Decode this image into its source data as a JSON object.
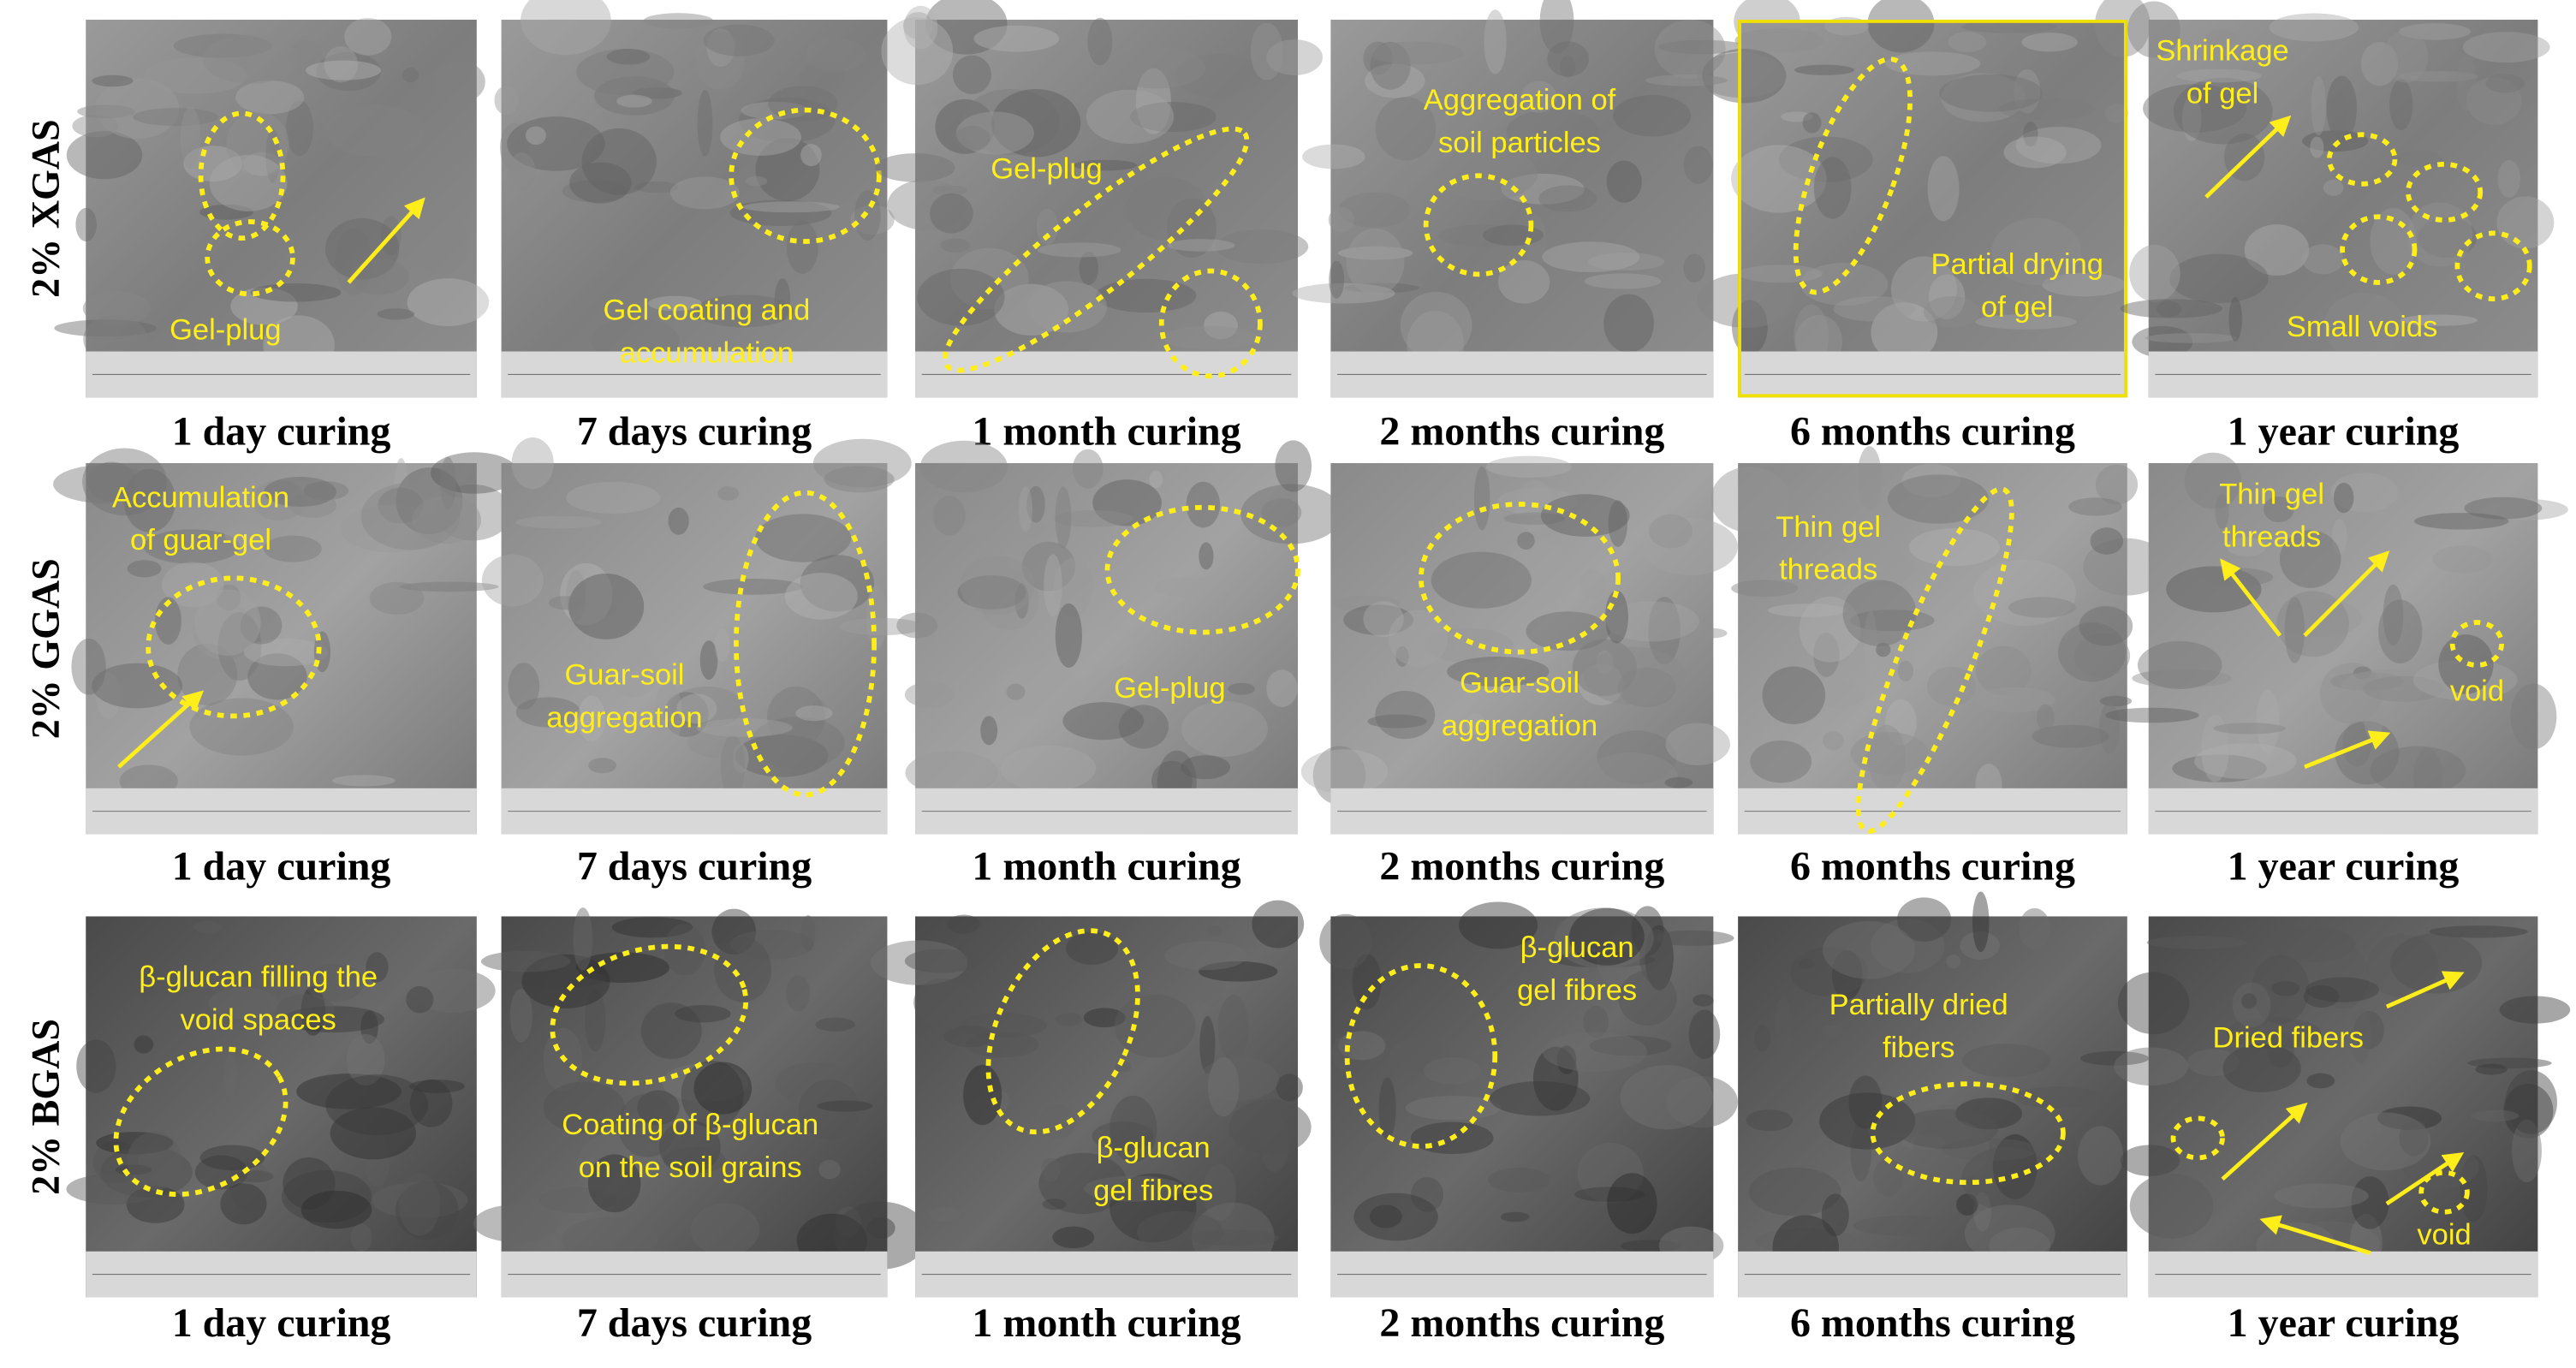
{
  "rows": [
    {
      "label": "2% XGAS",
      "panels": [
        {
          "caption": "1 day curing",
          "notes": [
            [
              "Gel-plug"
            ]
          ]
        },
        {
          "caption": "7 days curing",
          "notes": [
            [
              "Gel coating and",
              "accumulation"
            ]
          ]
        },
        {
          "caption": "1 month curing",
          "notes": [
            [
              "Gel-plug"
            ]
          ]
        },
        {
          "caption": "2 months curing",
          "notes": [
            [
              "Aggregation of",
              "soil particles"
            ]
          ]
        },
        {
          "caption": "6 months curing",
          "notes": [
            [
              "Partial drying",
              "of gel"
            ]
          ]
        },
        {
          "caption": "1 year curing",
          "notes": [
            [
              "Shrinkage",
              "of gel"
            ],
            [
              "Small voids"
            ]
          ]
        }
      ]
    },
    {
      "label": "2% GGAS",
      "panels": [
        {
          "caption": "1 day curing",
          "notes": [
            [
              "Accumulation",
              "of guar-gel"
            ]
          ]
        },
        {
          "caption": "7 days curing",
          "notes": [
            [
              "Guar-soil",
              "aggregation"
            ]
          ]
        },
        {
          "caption": "1 month curing",
          "notes": [
            [
              "Gel-plug"
            ]
          ]
        },
        {
          "caption": "2 months curing",
          "notes": [
            [
              "Guar-soil",
              "aggregation"
            ]
          ]
        },
        {
          "caption": "6 months curing",
          "notes": [
            [
              "Thin gel",
              "threads"
            ]
          ]
        },
        {
          "caption": "1 year curing",
          "notes": [
            [
              "Thin gel",
              "threads"
            ],
            [
              "void"
            ]
          ]
        }
      ]
    },
    {
      "label": "2% BGAS",
      "panels": [
        {
          "caption": "1 day curing",
          "notes": [
            [
              "β-glucan filling the",
              "void spaces"
            ]
          ]
        },
        {
          "caption": "7 days curing",
          "notes": [
            [
              "Coating of β-glucan",
              "on the soil grains"
            ]
          ]
        },
        {
          "caption": "1 month curing",
          "notes": [
            [
              "β-glucan",
              "gel fibres"
            ]
          ]
        },
        {
          "caption": "2 months curing",
          "notes": [
            [
              "β-glucan",
              "gel fibres"
            ]
          ]
        },
        {
          "caption": "6 months curing",
          "notes": [
            [
              "Partially dried",
              "fibers"
            ]
          ]
        },
        {
          "caption": "1 year curing",
          "notes": [
            [
              "Dried fibers"
            ],
            [
              "void"
            ]
          ]
        }
      ]
    }
  ]
}
